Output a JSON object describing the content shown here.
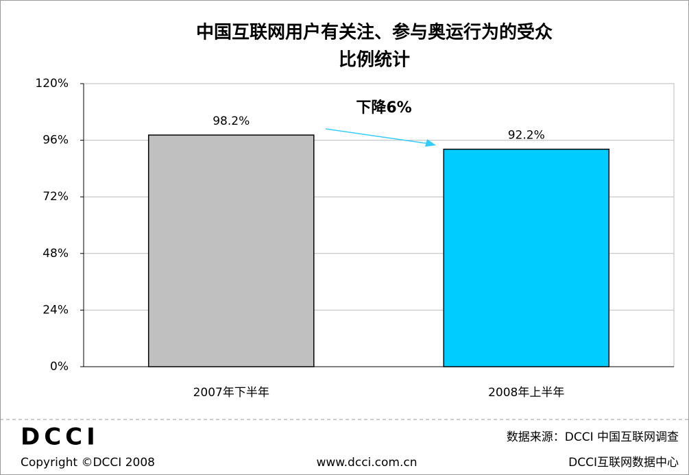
{
  "chart_data": {
    "type": "bar",
    "title": [
      "中国互联网用户有关注、参与奥运行为的受众",
      "比例统计"
    ],
    "categories": [
      "2007年下半年",
      "2008年上半年"
    ],
    "values": [
      98.2,
      92.2
    ],
    "value_labels": [
      "98.2%",
      "92.2%"
    ],
    "colors": [
      "#c0c0c0",
      "#00ccff"
    ],
    "ylim": [
      0,
      120
    ],
    "yticks": [
      {
        "value": 0,
        "label": "0%"
      },
      {
        "value": 24,
        "label": "24%"
      },
      {
        "value": 48,
        "label": "48%"
      },
      {
        "value": 72,
        "label": "72%"
      },
      {
        "value": 96,
        "label": "96%"
      },
      {
        "value": 120,
        "label": "120%"
      }
    ],
    "grid": true,
    "annotation": "下降6%",
    "annotation_color": "#33ccff"
  },
  "footer": {
    "logo": "DCCI",
    "copyright": "Copyright ©DCCI 2008",
    "website": "www.dcci.com.cn",
    "source": "数据来源：DCCI 中国互联网调查",
    "org": "DCCI互联网数据中心"
  }
}
